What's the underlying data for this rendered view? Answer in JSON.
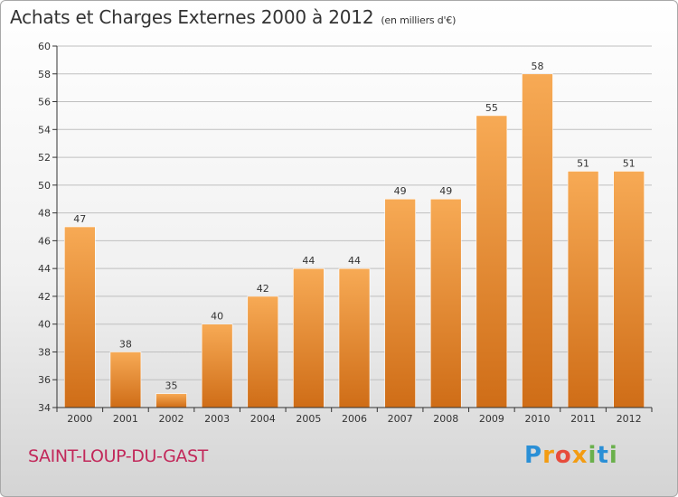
{
  "colors": {
    "bar_light": "#f7aa55",
    "bar_dark": "#cf6d17",
    "axis": "#333333",
    "grid": "#bfbfbf",
    "commune": "#c2285a"
  },
  "header": {
    "title": "Achats et Charges Externes 2000 à 2012",
    "unit": "(en milliers d'€)"
  },
  "footer": {
    "commune": "SAINT-LOUP-DU-GAST",
    "logo": "Proxiti",
    "logo_letters": [
      "P",
      "r",
      "o",
      "x",
      "i",
      "t",
      "i"
    ]
  },
  "chart_data": {
    "type": "bar",
    "title": "Achats et Charges Externes 2000 à 2012",
    "subtitle": "(en milliers d'€)",
    "xlabel": "",
    "ylabel": "",
    "categories": [
      "2000",
      "2001",
      "2002",
      "2003",
      "2004",
      "2005",
      "2006",
      "2007",
      "2008",
      "2009",
      "2010",
      "2011",
      "2012"
    ],
    "values": [
      47,
      38,
      35,
      40,
      42,
      44,
      44,
      49,
      49,
      55,
      58,
      51,
      51
    ],
    "ylim": [
      34,
      60
    ],
    "yticks": [
      34,
      36,
      38,
      40,
      42,
      44,
      46,
      48,
      50,
      52,
      54,
      56,
      58,
      60
    ],
    "grid": true,
    "legend": "none"
  }
}
